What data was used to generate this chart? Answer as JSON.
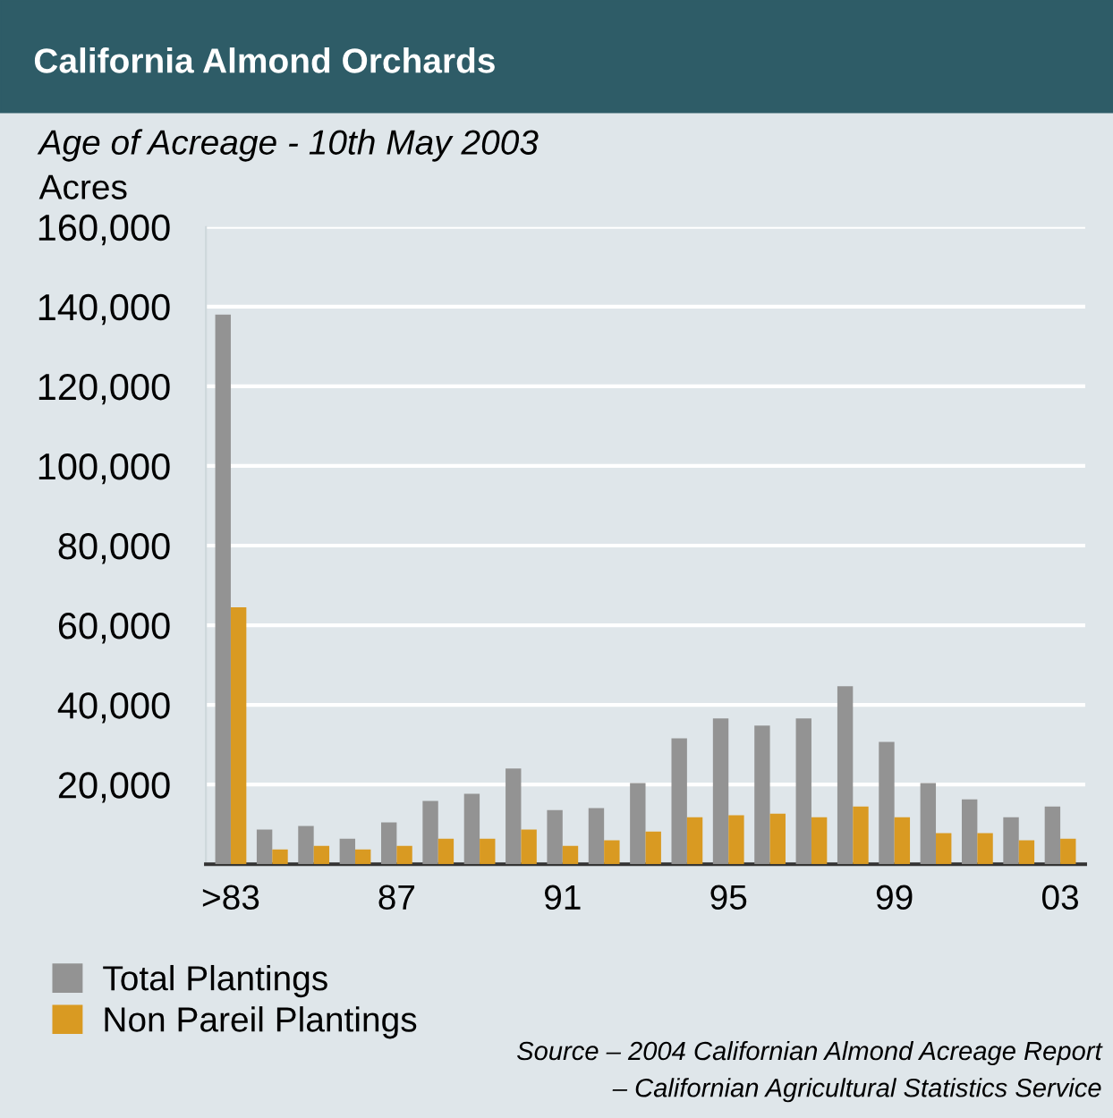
{
  "chart_data": {
    "type": "bar",
    "title": "California Almond Orchards",
    "subtitle": "Age of Acreage - 10th May 2003",
    "ylabel": "Acres",
    "categories": [
      ">83",
      null,
      null,
      null,
      "87",
      null,
      null,
      null,
      "91",
      null,
      null,
      null,
      "95",
      null,
      null,
      null,
      "99",
      null,
      null,
      null,
      "03"
    ],
    "series": [
      {
        "name": "Total Plantings",
        "color": "#939393",
        "values": [
          138000,
          8700,
          9600,
          6400,
          10500,
          15900,
          17700,
          24000,
          13600,
          14100,
          20400,
          31600,
          36600,
          34800,
          36600,
          44700,
          30700,
          20400,
          16300,
          11800,
          14500
        ]
      },
      {
        "name": "Non Pareil Plantings",
        "color": "#d99a22",
        "values": [
          64500,
          3700,
          4600,
          3700,
          4600,
          6400,
          6400,
          8700,
          4600,
          6000,
          8200,
          11800,
          12300,
          12700,
          11800,
          14500,
          11800,
          7800,
          7800,
          6000,
          6400
        ]
      }
    ],
    "ylim": [
      0,
      160000
    ],
    "yticks": [
      {
        "value": 20000,
        "label": "20,000"
      },
      {
        "value": 40000,
        "label": "40,000"
      },
      {
        "value": 60000,
        "label": "60,000"
      },
      {
        "value": 80000,
        "label": "80,000"
      },
      {
        "value": 100000,
        "label": "100,000"
      },
      {
        "value": 120000,
        "label": "120,000"
      },
      {
        "value": 140000,
        "label": "140,000"
      },
      {
        "value": 160000,
        "label": "160,000"
      }
    ],
    "grid": "y",
    "legend": "bottom left",
    "annotations": [
      "Source – 2004 Californian Almond Acreage Report",
      "– Californian Agricultural Statistics Service"
    ]
  }
}
